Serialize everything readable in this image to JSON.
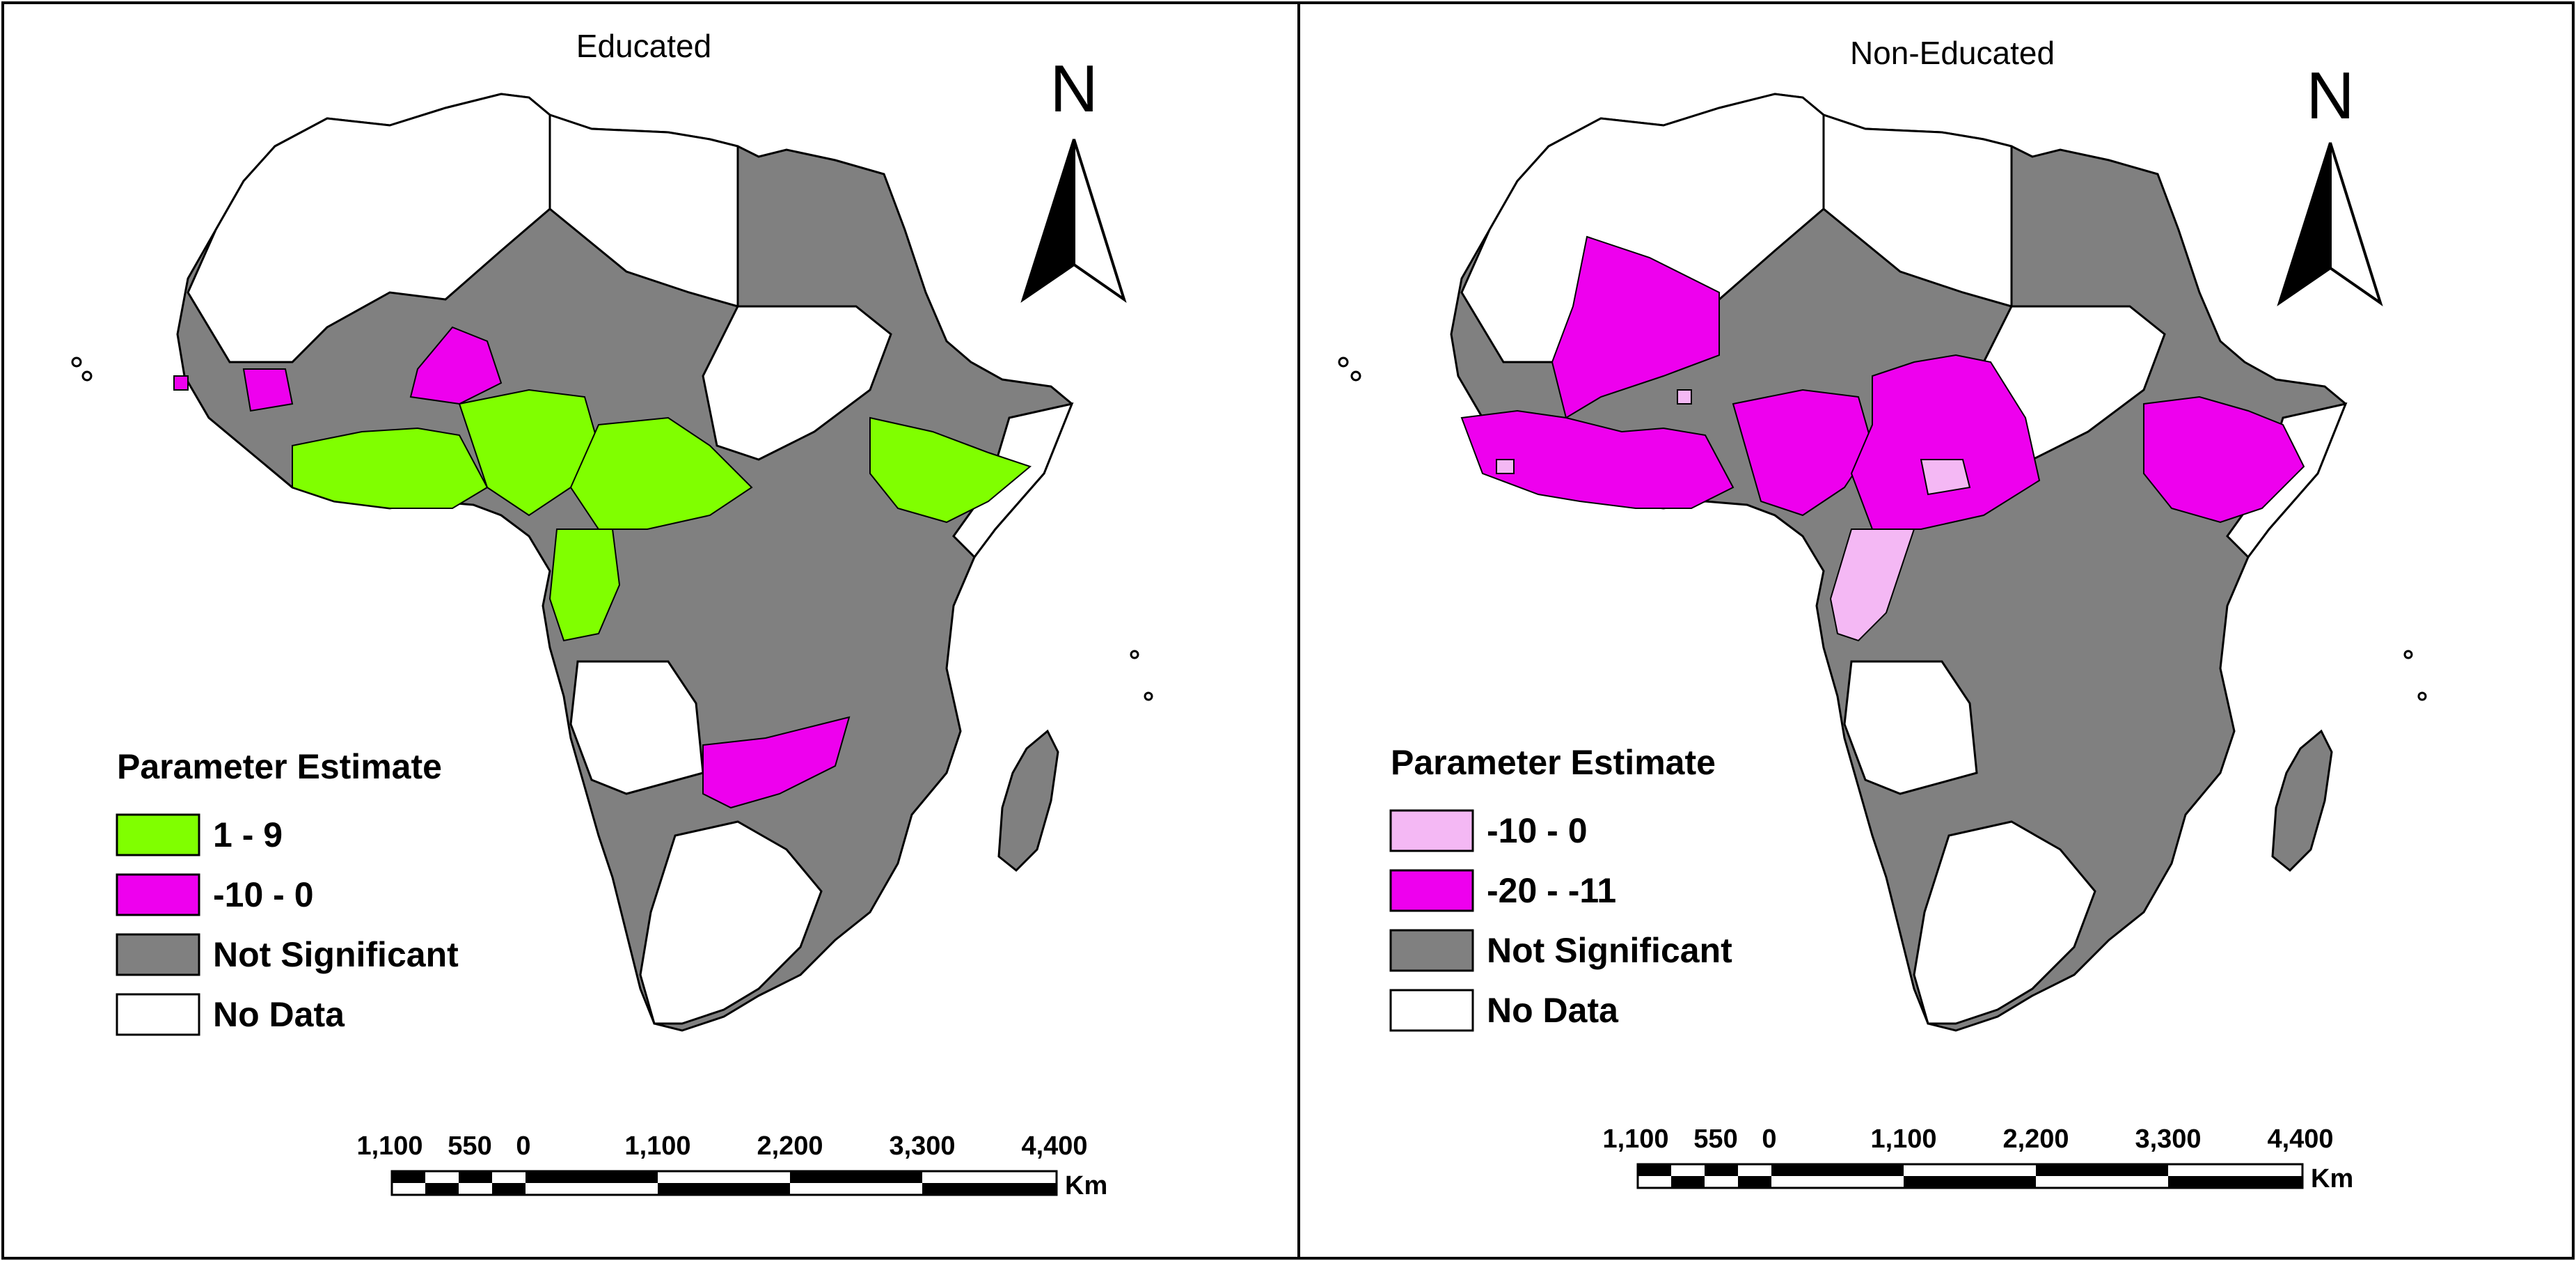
{
  "colors": {
    "green": "#80ff00",
    "magenta": "#ee00ee",
    "light_pink": "#f4b8f4",
    "gray": "#808080",
    "white": "#ffffff",
    "border": "#000000"
  },
  "panels": [
    {
      "title": "Educated",
      "legend": {
        "title": "Parameter Estimate",
        "items": [
          {
            "label": "1 - 9",
            "color": "#80ff00"
          },
          {
            "label": "-10 - 0",
            "color": "#ee00ee"
          },
          {
            "label": "Not Significant",
            "color": "#808080"
          },
          {
            "label": "No Data",
            "color": "#ffffff"
          }
        ]
      },
      "north_arrow": "N",
      "scale_bar": {
        "labels": [
          "1,100",
          "550",
          "0",
          "1,100",
          "2,200",
          "3,300",
          "4,400"
        ],
        "unit": "Km"
      }
    },
    {
      "title": "Non-Educated",
      "legend": {
        "title": "Parameter Estimate",
        "items": [
          {
            "label": "-10 - 0",
            "color": "#f4b8f4"
          },
          {
            "label": "-20 - -11",
            "color": "#ee00ee"
          },
          {
            "label": "Not Significant",
            "color": "#808080"
          },
          {
            "label": "No Data",
            "color": "#ffffff"
          }
        ]
      },
      "north_arrow": "N",
      "scale_bar": {
        "labels": [
          "1,100",
          "550",
          "0",
          "1,100",
          "2,200",
          "3,300",
          "4,400"
        ],
        "unit": "Km"
      }
    }
  ]
}
